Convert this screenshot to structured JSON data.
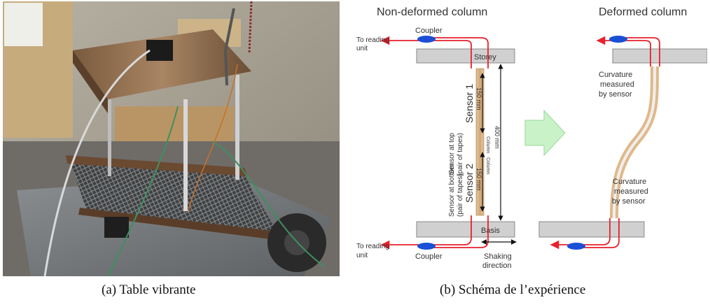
{
  "captions": {
    "a": "(a) Table vibrante",
    "b": "(b) Schéma de l’expérience"
  },
  "schema": {
    "title_left": "Non-deformed column",
    "title_right": "Deformed column",
    "coupler": "Coupler",
    "to_reading_unit_line1": "To reading",
    "to_reading_unit_line2": "unit",
    "storey": "Storey",
    "basis": "Basis",
    "sensor_top_line1": "Sensor at top",
    "sensor_top_line2": "(pair of tapes)",
    "sensor1": "Sensor 1",
    "sensor_bottom_line1": "Sensor at bottom",
    "sensor_bottom_line2": "(pair of tapes)",
    "sensor2": "Sensor 2",
    "dim_150_top": "150 mm",
    "dim_150_bottom": "150 mm",
    "dim_400": "400 mm",
    "column_label_top": "Column",
    "column_label_bottom": "Column",
    "shaking_line1": "Shaking",
    "shaking_line2": "direction",
    "curvature_top_line1": "Curvature",
    "curvature_top_line2": "measured",
    "curvature_top_line3": "by sensor",
    "curvature_bottom_line1": "Curvature",
    "curvature_bottom_line2": "measured",
    "curvature_bottom_line3": "by sensor"
  },
  "colors": {
    "fiber": "#e8212b",
    "coupler": "#1a4fd6",
    "plate": "#d0d0d0",
    "tape": "#e0b98a",
    "arrow": "#c9f2c9"
  }
}
